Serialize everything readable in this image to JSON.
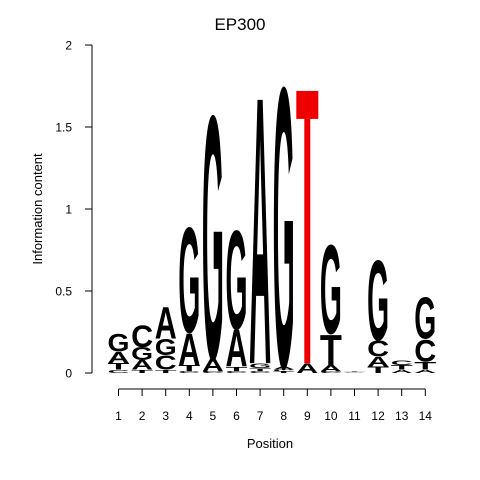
{
  "chart_data": {
    "type": "sequence-logo",
    "title": "EP300",
    "xlabel": "Position",
    "ylabel": "Information content",
    "ylim": [
      0,
      2
    ],
    "yticks": [
      "0",
      "0.5",
      "1",
      "1.5",
      "2"
    ],
    "colors": {
      "A": "#00dd00",
      "C": "#0000dd",
      "G": "#f5a000",
      "T": "#ee0000"
    },
    "positions": [
      {
        "label": "1",
        "letters": [
          {
            "base": "C",
            "height": 0.02
          },
          {
            "base": "T",
            "height": 0.04
          },
          {
            "base": "A",
            "height": 0.07
          },
          {
            "base": "G",
            "height": 0.11
          }
        ]
      },
      {
        "label": "2",
        "letters": [
          {
            "base": "T",
            "height": 0.02
          },
          {
            "base": "A",
            "height": 0.06
          },
          {
            "base": "G",
            "height": 0.08
          },
          {
            "base": "C",
            "height": 0.14
          }
        ]
      },
      {
        "label": "3",
        "letters": [
          {
            "base": "T",
            "height": 0.02
          },
          {
            "base": "C",
            "height": 0.09
          },
          {
            "base": "G",
            "height": 0.1
          },
          {
            "base": "A",
            "height": 0.2
          }
        ]
      },
      {
        "label": "4",
        "letters": [
          {
            "base": "C",
            "height": 0.01
          },
          {
            "base": "T",
            "height": 0.04
          },
          {
            "base": "A",
            "height": 0.2
          },
          {
            "base": "G",
            "height": 0.66
          }
        ]
      },
      {
        "label": "5",
        "letters": [
          {
            "base": "C",
            "height": 0.01
          },
          {
            "base": "A",
            "height": 0.08
          },
          {
            "base": "G",
            "height": 1.53
          }
        ]
      },
      {
        "label": "6",
        "letters": [
          {
            "base": "C",
            "height": 0.01
          },
          {
            "base": "T",
            "height": 0.03
          },
          {
            "base": "A",
            "height": 0.23
          },
          {
            "base": "G",
            "height": 0.62
          }
        ]
      },
      {
        "label": "7",
        "letters": [
          {
            "base": "C",
            "height": 0.01
          },
          {
            "base": "T",
            "height": 0.02
          },
          {
            "base": "G",
            "height": 0.03
          },
          {
            "base": "A",
            "height": 1.68
          }
        ]
      },
      {
        "label": "8",
        "letters": [
          {
            "base": "T",
            "height": 0.01
          },
          {
            "base": "C",
            "height": 0.01
          },
          {
            "base": "A",
            "height": 0.02
          },
          {
            "base": "G",
            "height": 1.76
          }
        ]
      },
      {
        "label": "9",
        "letters": [
          {
            "base": "A",
            "height": 0.06
          },
          {
            "base": "T",
            "height": 1.66
          }
        ]
      },
      {
        "label": "10",
        "letters": [
          {
            "base": "C",
            "height": 0.01
          },
          {
            "base": "A",
            "height": 0.04
          },
          {
            "base": "T",
            "height": 0.19
          },
          {
            "base": "G",
            "height": 0.56
          }
        ]
      },
      {
        "label": "11",
        "letters": [
          {
            "base": "G",
            "height": 0.005
          },
          {
            "base": "T",
            "height": 0.005
          }
        ]
      },
      {
        "label": "12",
        "letters": [
          {
            "base": "T",
            "height": 0.04
          },
          {
            "base": "A",
            "height": 0.06
          },
          {
            "base": "C",
            "height": 0.1
          },
          {
            "base": "G",
            "height": 0.5
          }
        ]
      },
      {
        "label": "13",
        "letters": [
          {
            "base": "A",
            "height": 0.02
          },
          {
            "base": "T",
            "height": 0.03
          },
          {
            "base": "C",
            "height": 0.03
          }
        ]
      },
      {
        "label": "14",
        "letters": [
          {
            "base": "A",
            "height": 0.02
          },
          {
            "base": "T",
            "height": 0.05
          },
          {
            "base": "C",
            "height": 0.14
          },
          {
            "base": "G",
            "height": 0.26
          }
        ]
      }
    ]
  }
}
